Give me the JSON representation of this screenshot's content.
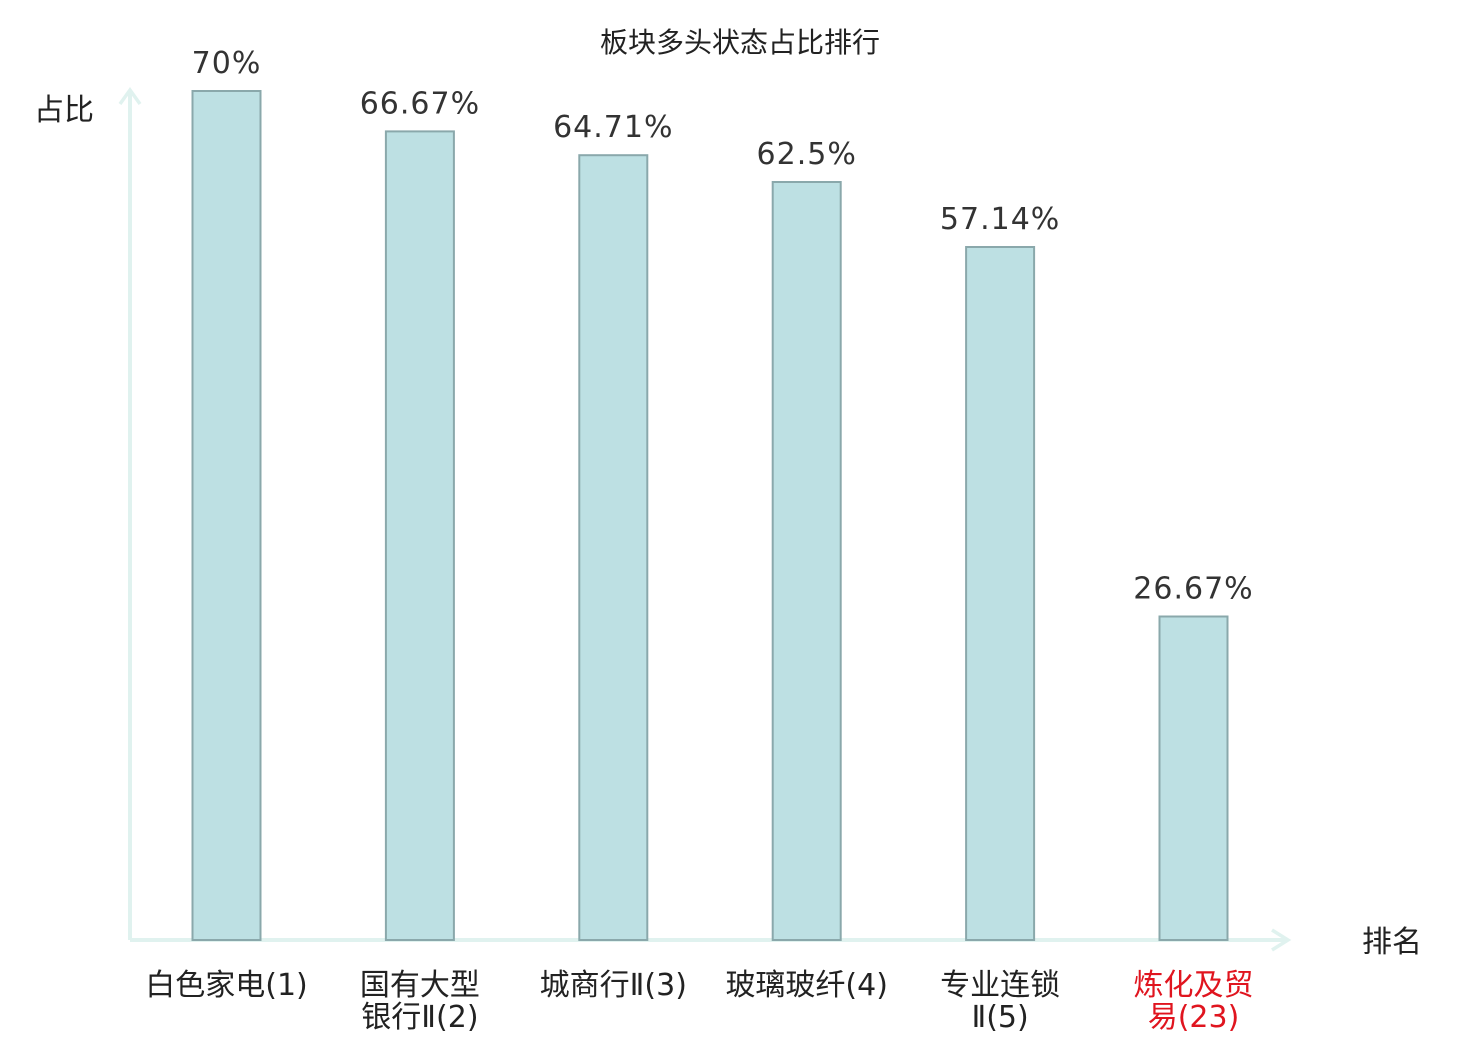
{
  "chart_data": {
    "type": "bar",
    "title": "板块多头状态占比排行",
    "ylabel": "占比",
    "xlabel": "排名",
    "ylim": [
      0,
      70
    ],
    "grid": false,
    "legend": "none",
    "categories": [
      "白色家电(1)",
      "国有大型银行Ⅱ(2)",
      "城商行Ⅱ(3)",
      "玻璃玻纤(4)",
      "专业连锁Ⅱ(5)",
      "炼化及贸易(23)"
    ],
    "category_lines": [
      [
        "白色家电(1)"
      ],
      [
        "国有大型",
        "银行Ⅱ(2)"
      ],
      [
        "城商行Ⅱ(3)"
      ],
      [
        "玻璃玻纤(4)"
      ],
      [
        "专业连锁",
        "Ⅱ(5)"
      ],
      [
        "炼化及贸",
        "易(23)"
      ]
    ],
    "values": [
      70,
      66.67,
      64.71,
      62.5,
      57.14,
      26.67
    ],
    "value_labels": [
      "70%",
      "66.67%",
      "64.71%",
      "62.5%",
      "57.14%",
      "26.67%"
    ],
    "highlight_index": 5,
    "colors": {
      "bar_fill": "#bde0e3",
      "bar_stroke": "#8aa8ab",
      "axis": "#e0f2ef",
      "text": "#222222",
      "value_text": "#333333",
      "highlight": "#e0151f"
    }
  }
}
